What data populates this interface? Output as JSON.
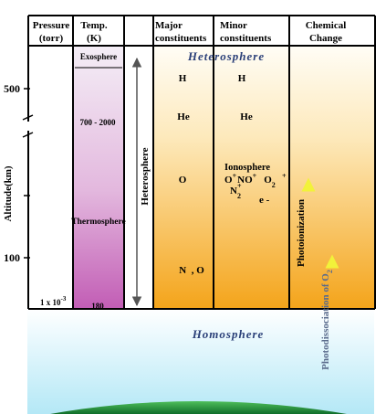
{
  "headers": {
    "pressure": [
      "Pressure",
      "(torr)"
    ],
    "temp": [
      "Temp.",
      "(K)"
    ],
    "major": [
      "Major",
      "constituents"
    ],
    "minor": [
      "Minor",
      "constituents"
    ],
    "chemical": [
      "Chemical",
      "Change"
    ]
  },
  "altitude_axis": {
    "label": "Altitude(km)",
    "ticks": [
      "500",
      "100"
    ]
  },
  "temperature_column": {
    "exosphere": "Exosphere",
    "range": "700 - 2000",
    "thermosphere": "Thermosphere",
    "bottom_value": "180"
  },
  "pressure_value": "1 x 10",
  "pressure_exponent": "-3",
  "heterosphere_vertical": "Heterosphere",
  "heterosphere_title": "Heterosphere",
  "homosphere_title": "Homosphere",
  "major_constituents": [
    "H",
    "He",
    "O",
    "N  , O"
  ],
  "minor_constituents": {
    "h": "H",
    "he": "He",
    "ionosphere": "Ionosphere",
    "o_ion": "O",
    "no_ion": "NO",
    "o2_ion": "O",
    "n2_ion": "N",
    "electron": "e -"
  },
  "chemical_change": {
    "photoionization": "Photoionization",
    "photodissociation": "Photodissociation of O"
  },
  "colors": {
    "thermosphere_top": "#f4eef6",
    "thermosphere_bottom": "#c25db5",
    "orange_top": "#fffdf6",
    "orange_bottom": "#f4a41a",
    "sky_top": "#eafaff",
    "sky_bottom": "#b8ebf7",
    "ground": "#1e8e3a",
    "arrow_double": "#555555",
    "arrow_yellow": "#ffff66",
    "title_blue": "#2a3f78"
  }
}
